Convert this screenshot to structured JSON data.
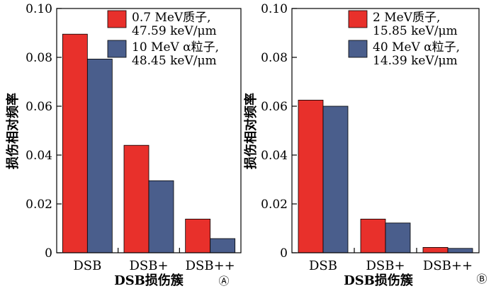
{
  "colors": {
    "proton": "#e8302b",
    "alpha": "#4a5e8c"
  },
  "chart_data": [
    {
      "type": "bar",
      "panel_marker": "Ⓐ",
      "categories": [
        "DSB",
        "DSB+",
        "DSB++"
      ],
      "xlabel": "DSB损伤簇",
      "ylabel": "损伤相对频率",
      "ylim": [
        0,
        0.1
      ],
      "yticks": [
        "0",
        "0.02",
        "0.04",
        "0.06",
        "0.08",
        "0.10"
      ],
      "ytick_values": [
        0,
        0.02,
        0.04,
        0.06,
        0.08,
        0.1
      ],
      "legend_position": "top-right",
      "grid": false,
      "series": [
        {
          "name": "0.7 MeV质子,",
          "name_line2": "47.59 keV/μm",
          "color": "#e8302b",
          "values": [
            0.0895,
            0.044,
            0.0138
          ]
        },
        {
          "name": "10 MeV α粒子,",
          "name_line2": "48.45 keV/μm",
          "color": "#4a5e8c",
          "values": [
            0.0793,
            0.0295,
            0.0058
          ]
        }
      ]
    },
    {
      "type": "bar",
      "panel_marker": "Ⓑ",
      "categories": [
        "DSB",
        "DSB+",
        "DSB++"
      ],
      "xlabel": "DSB损伤簇",
      "ylabel": "损伤相对频率",
      "ylim": [
        0,
        0.1
      ],
      "yticks": [
        "0",
        "0.02",
        "0.04",
        "0.06",
        "0.08",
        "0.10"
      ],
      "ytick_values": [
        0,
        0.02,
        0.04,
        0.06,
        0.08,
        0.1
      ],
      "legend_position": "top-right",
      "grid": false,
      "series": [
        {
          "name": "2 MeV质子,",
          "name_line2": "15.85 keV/μm",
          "color": "#e8302b",
          "values": [
            0.0625,
            0.0138,
            0.0022
          ]
        },
        {
          "name": "40 MeV α粒子,",
          "name_line2": "14.39 keV/μm",
          "color": "#4a5e8c",
          "values": [
            0.06,
            0.0122,
            0.0018
          ]
        }
      ]
    }
  ]
}
